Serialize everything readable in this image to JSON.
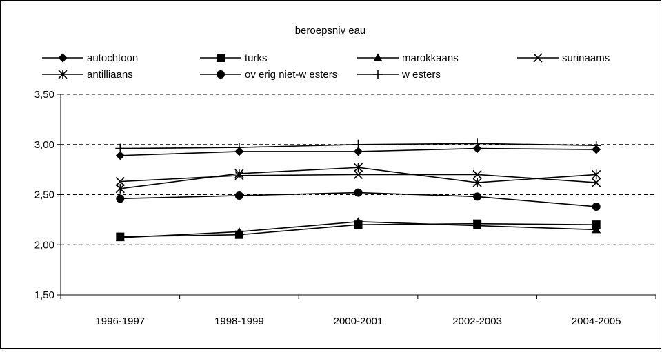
{
  "chart_data": {
    "type": "line",
    "title": "beroepsniv eau",
    "xlabel": "",
    "ylabel": "",
    "categories": [
      "1996-1997",
      "1998-1999",
      "2000-2001",
      "2002-2003",
      "2004-2005"
    ],
    "ylim": [
      1.5,
      3.5
    ],
    "yticks": [
      1.5,
      2.0,
      2.5,
      3.0,
      3.5
    ],
    "ytick_labels": [
      "1,50",
      "2,00",
      "2,50",
      "3,00",
      "3,50"
    ],
    "grid": "horizontal-dashed",
    "legend_position": "top",
    "series": [
      {
        "name": "autochtoon",
        "marker": "diamond",
        "values": [
          2.89,
          2.93,
          2.93,
          2.96,
          2.95
        ]
      },
      {
        "name": "turks",
        "marker": "square",
        "values": [
          2.08,
          2.1,
          2.2,
          2.21,
          2.2
        ]
      },
      {
        "name": "marokkaans",
        "marker": "triangle",
        "values": [
          2.07,
          2.13,
          2.23,
          2.19,
          2.15
        ]
      },
      {
        "name": "surinaams",
        "marker": "x",
        "values": [
          2.63,
          2.69,
          2.7,
          2.7,
          2.62
        ]
      },
      {
        "name": "antilliaans",
        "marker": "asterisk",
        "values": [
          2.56,
          2.71,
          2.77,
          2.62,
          2.7
        ]
      },
      {
        "name": "ov erig niet-w esters",
        "marker": "circle",
        "values": [
          2.46,
          2.49,
          2.52,
          2.48,
          2.38
        ]
      },
      {
        "name": "w esters",
        "marker": "plus",
        "values": [
          2.96,
          2.97,
          3.0,
          3.01,
          2.99
        ]
      }
    ]
  }
}
